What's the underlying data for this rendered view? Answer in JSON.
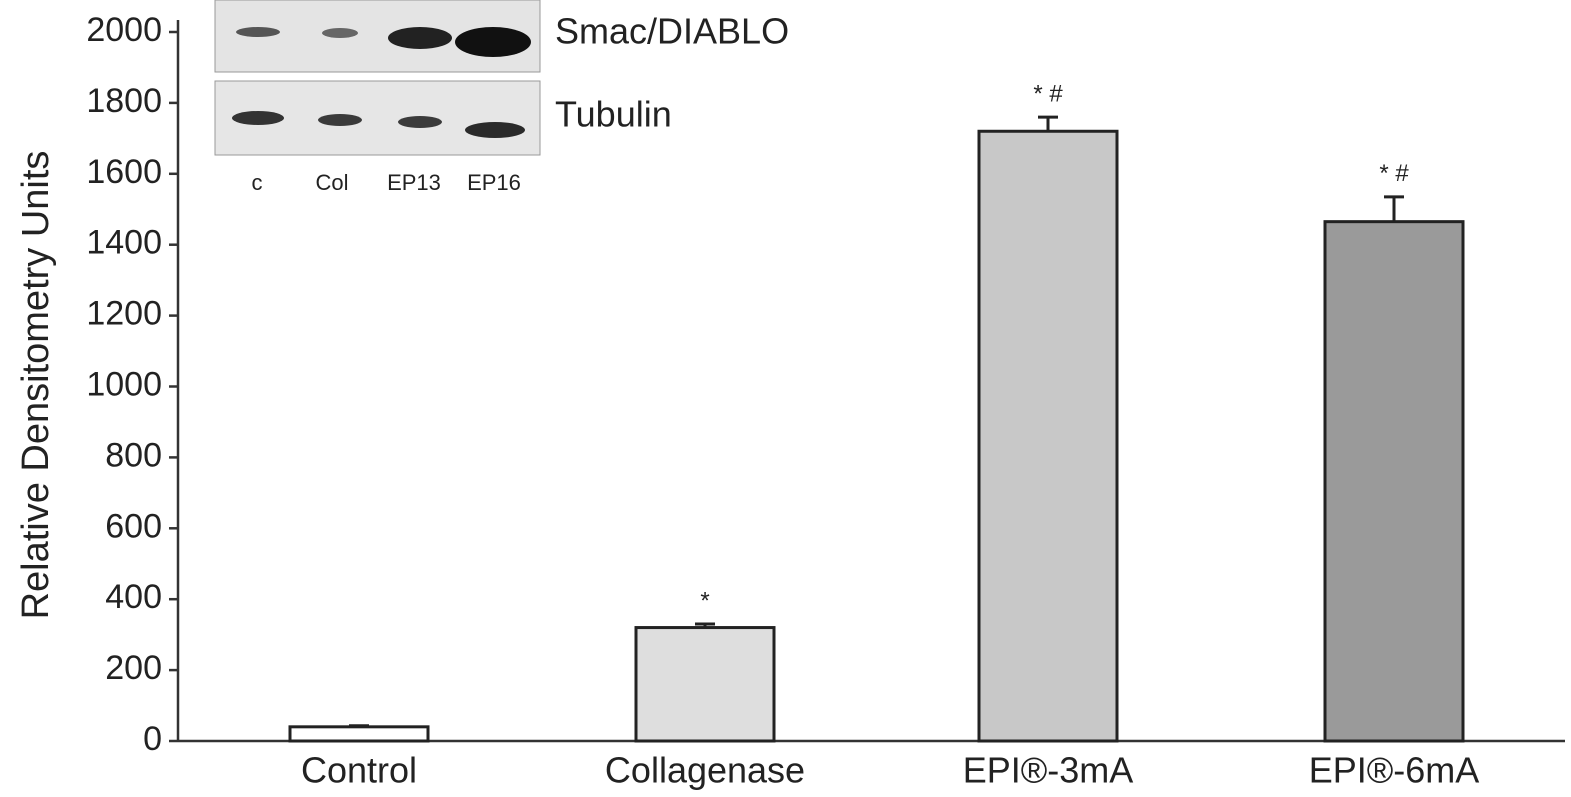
{
  "chart_data": {
    "type": "bar",
    "y_label": "Relative Densitometry Units",
    "categories": [
      "Control",
      "Collagenase",
      "EPI®-3mA",
      "EPI®-6mA"
    ],
    "values": [
      40,
      320,
      1720,
      1465
    ],
    "errors": [
      3,
      10,
      40,
      70
    ],
    "colors": [
      "#ffffff",
      "#dedede",
      "#c8c8c8",
      "#9a9a9a"
    ],
    "annotations": [
      null,
      "*",
      "* #",
      "* #"
    ],
    "ylim": [
      0,
      2000
    ],
    "yticks": [
      0,
      200,
      400,
      600,
      800,
      1000,
      1200,
      1400,
      1600,
      1800,
      2000
    ],
    "blot": {
      "rows": [
        "Smac/DIABLO",
        "Tubulin"
      ],
      "lanes": [
        "c",
        "Col",
        "EP13",
        "EP16"
      ]
    }
  }
}
